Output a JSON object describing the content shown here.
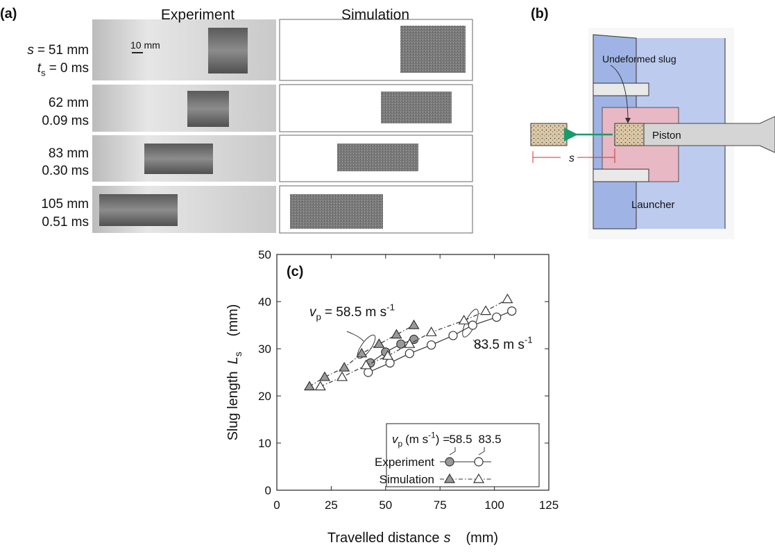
{
  "panel_a": {
    "label": "(a)",
    "columns": [
      "Experiment",
      "Simulation"
    ],
    "scale_bar": "10 mm",
    "symbol_s": "s",
    "symbol_t": "t",
    "subscript_t": "s",
    "equals": "=",
    "rows": [
      {
        "s": "51 mm",
        "t": "0 ms"
      },
      {
        "s": "62 mm",
        "t": "0.09 ms"
      },
      {
        "s": "83 mm",
        "t": "0.30 ms"
      },
      {
        "s": "105 mm",
        "t": "0.51 ms"
      }
    ]
  },
  "panel_b": {
    "label": "(b)",
    "slug_label": "Undeformed slug",
    "piston": "Piston",
    "distance": "s",
    "launcher": "Launcher"
  },
  "chart_data": {
    "type": "line",
    "panel_label": "(c)",
    "x_label": {
      "text": "Travelled distance",
      "symbol": "s",
      "unit": "(mm)"
    },
    "y_label": {
      "text": "Slug length",
      "symbol": "L",
      "subscript": "s",
      "unit": "(mm)"
    },
    "xlim": [
      0,
      125
    ],
    "ylim": [
      0,
      50
    ],
    "xticks": [
      0,
      25,
      50,
      75,
      100,
      125
    ],
    "yticks": [
      0,
      10,
      20,
      30,
      40,
      50
    ],
    "legend": {
      "symbol": "v",
      "subscript": "p",
      "unit": "(m s",
      "exponent": "-1",
      "unit_close": ")",
      "equals": "="
    },
    "annotations": [
      {
        "symbol": "v",
        "subscript": "p",
        "text": "= 58.5 m s",
        "exponent": "-1"
      },
      {
        "text": "83.5 m s",
        "exponent": "-1"
      }
    ],
    "series": [
      {
        "name": "Experiment",
        "vp": 58.5,
        "marker": "circle",
        "color": "#999999",
        "line_style": "solid",
        "x": [
          43,
          50,
          57,
          63
        ],
        "values": [
          27,
          29.3,
          31,
          32
        ]
      },
      {
        "name": "Experiment",
        "vp": 83.5,
        "marker": "circle",
        "color": "#ffffff",
        "line_style": "solid",
        "x": [
          42,
          52,
          61,
          71,
          81,
          90,
          101,
          108
        ],
        "values": [
          25,
          27,
          29,
          30.8,
          32.8,
          35,
          36.7,
          38
        ]
      },
      {
        "name": "Simulation",
        "vp": 58.5,
        "marker": "triangle",
        "color": "#999999",
        "line_style": "dashdot",
        "x": [
          15,
          22,
          31,
          39,
          47,
          55,
          63
        ],
        "values": [
          22,
          24,
          26,
          29,
          31,
          33,
          35
        ]
      },
      {
        "name": "Simulation",
        "vp": 83.5,
        "marker": "triangle",
        "color": "#ffffff",
        "line_style": "dashdot",
        "x": [
          20,
          30,
          41,
          51,
          61,
          71,
          86,
          96,
          106
        ],
        "values": [
          22,
          24,
          26.5,
          28.5,
          31,
          33.5,
          36,
          38,
          40.5
        ]
      }
    ]
  }
}
